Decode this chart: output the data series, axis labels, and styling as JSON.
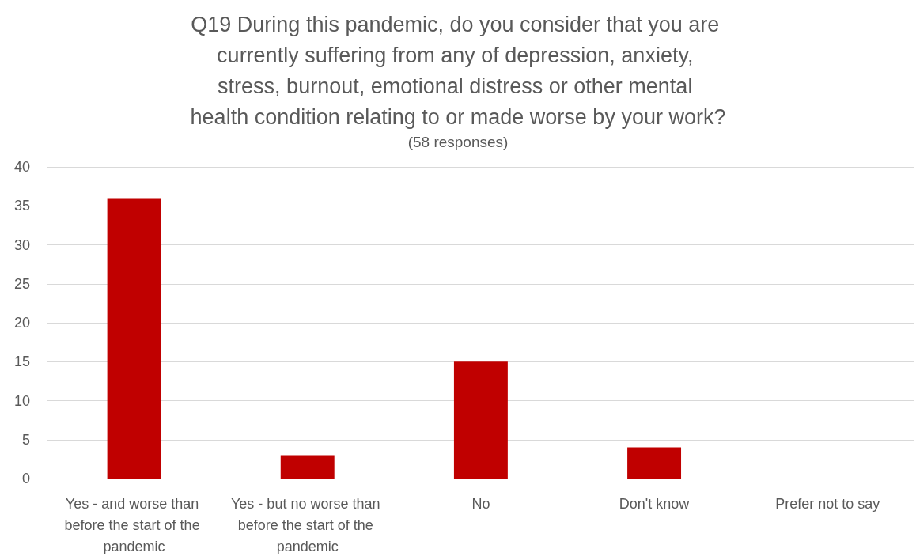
{
  "chart_data": {
    "type": "bar",
    "title": "Q19 During this pandemic, do you consider that you are currently suffering from any of depression, anxiety, stress, burnout, emotional distress or other mental health condition relating to or made worse by your work?",
    "subtitle": "(58 responses)",
    "categories": [
      "Yes - and worse than before the start of the pandemic",
      "Yes - but no worse than before the start of the pandemic",
      "No",
      "Don't know",
      "Prefer not to say"
    ],
    "values": [
      36,
      3,
      15,
      4,
      0
    ],
    "color": "#c00000",
    "ylim": [
      0,
      40
    ],
    "yticks": [
      0,
      5,
      10,
      15,
      20,
      25,
      30,
      35,
      40
    ],
    "grid": "y"
  }
}
